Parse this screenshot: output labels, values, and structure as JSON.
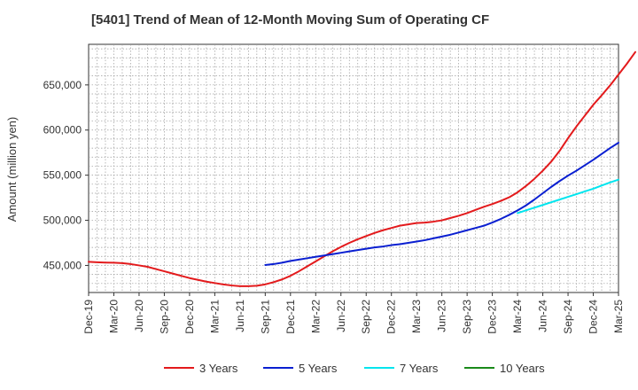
{
  "chart_data": {
    "type": "line",
    "title": "[5401]  Trend of Mean of 12-Month Moving Sum of Operating CF",
    "xlabel": "",
    "ylabel": "Amount (million yen)",
    "ylim": [
      420000,
      695000
    ],
    "yticks": [
      450000,
      500000,
      550000,
      600000,
      650000
    ],
    "ytick_labels": [
      "450,000",
      "500,000",
      "550,000",
      "600,000",
      "650,000"
    ],
    "x_start": "Dec-19",
    "x_end": "Mar-25",
    "xtick_labels": [
      "Dec-19",
      "Mar-20",
      "Jun-20",
      "Sep-20",
      "Dec-20",
      "Mar-21",
      "Jun-21",
      "Sep-21",
      "Dec-21",
      "Mar-22",
      "Jun-22",
      "Sep-22",
      "Dec-22",
      "Mar-23",
      "Jun-23",
      "Sep-23",
      "Dec-23",
      "Mar-24",
      "Jun-24",
      "Sep-24",
      "Dec-24",
      "Mar-25"
    ],
    "grid": true,
    "legend_position": "bottom",
    "series": [
      {
        "name": "3 Years",
        "color": "#e31a1c",
        "start_index": 0,
        "values": [
          454000,
          453500,
          453200,
          453000,
          452500,
          451500,
          450000,
          448500,
          446000,
          443500,
          441000,
          438500,
          436000,
          434000,
          432000,
          430500,
          429000,
          427800,
          427000,
          427000,
          427500,
          429000,
          431500,
          434500,
          438500,
          443500,
          449000,
          454500,
          460000,
          465500,
          470500,
          475000,
          479000,
          482500,
          486000,
          489000,
          491500,
          494000,
          495500,
          497000,
          497500,
          498500,
          500000,
          502500,
          505000,
          508000,
          511500,
          515000,
          518000,
          521500,
          525500,
          531000,
          538000,
          546000,
          555000,
          565000,
          577000,
          591000,
          604000,
          616000,
          628000,
          638500,
          649500,
          661500,
          673500,
          686500
        ]
      },
      {
        "name": "5 Years",
        "color": "#0a1fd1",
        "start_index": 21,
        "values": [
          450500,
          451500,
          453000,
          455000,
          456500,
          458000,
          459500,
          461000,
          462500,
          464000,
          465500,
          467000,
          468500,
          470000,
          471000,
          472500,
          473500,
          475000,
          476500,
          478000,
          480000,
          482000,
          484000,
          486500,
          489000,
          491500,
          494000,
          497500,
          501500,
          506000,
          511000,
          516500,
          523000,
          530000,
          537000,
          543500,
          549500,
          555000,
          561000,
          567000,
          573500,
          580000,
          586000
        ]
      },
      {
        "name": "7 Years",
        "color": "#00e5ee",
        "start_index": 51,
        "values": [
          508000,
          511000,
          514000,
          517000,
          520000,
          523000,
          526000,
          529000,
          532000,
          535000,
          538500,
          542000,
          545000
        ]
      },
      {
        "name": "10 Years",
        "color": "#1a8a1a",
        "start_index": 0,
        "values": []
      }
    ]
  }
}
